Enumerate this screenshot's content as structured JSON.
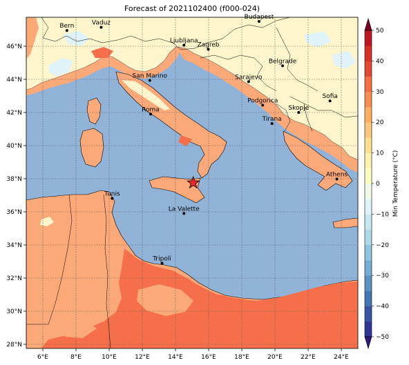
{
  "title": "Forecast of 2021102400 (f000-024)",
  "map": {
    "lon_range": [
      5,
      25
    ],
    "lat_range": [
      27.75,
      47.75
    ],
    "gridlines": true,
    "lon_ticks": [
      {
        "value": 6,
        "label": "6°E"
      },
      {
        "value": 8,
        "label": "8°E"
      },
      {
        "value": 10,
        "label": "10°E"
      },
      {
        "value": 12,
        "label": "12°E"
      },
      {
        "value": 14,
        "label": "14°E"
      },
      {
        "value": 16,
        "label": "16°E"
      },
      {
        "value": 18,
        "label": "18°E"
      },
      {
        "value": 20,
        "label": "20°E"
      },
      {
        "value": 22,
        "label": "22°E"
      },
      {
        "value": 24,
        "label": "24°E"
      }
    ],
    "lat_ticks": [
      {
        "value": 28,
        "label": "28°N"
      },
      {
        "value": 30,
        "label": "30°N"
      },
      {
        "value": 32,
        "label": "32°N"
      },
      {
        "value": 34,
        "label": "34°N"
      },
      {
        "value": 36,
        "label": "36°N"
      },
      {
        "value": 38,
        "label": "38°N"
      },
      {
        "value": 40,
        "label": "40°N"
      },
      {
        "value": 42,
        "label": "42°N"
      },
      {
        "value": 44,
        "label": "44°N"
      },
      {
        "value": 46,
        "label": "46°N"
      }
    ],
    "cities": [
      {
        "name": "Bern",
        "lon": 7.45,
        "lat": 46.95
      },
      {
        "name": "Vaduz",
        "lon": 9.52,
        "lat": 47.14
      },
      {
        "name": "Budapest",
        "lon": 19.04,
        "lat": 47.5
      },
      {
        "name": "Ljubljana",
        "lon": 14.51,
        "lat": 46.06
      },
      {
        "name": "Zagreb",
        "lon": 15.98,
        "lat": 45.81
      },
      {
        "name": "Belgrade",
        "lon": 20.46,
        "lat": 44.82
      },
      {
        "name": "San Marino",
        "lon": 12.45,
        "lat": 43.94
      },
      {
        "name": "Sarajevo",
        "lon": 18.41,
        "lat": 43.86
      },
      {
        "name": "Sofia",
        "lon": 23.32,
        "lat": 42.7
      },
      {
        "name": "Podgorica",
        "lon": 19.26,
        "lat": 42.44
      },
      {
        "name": "Skopje",
        "lon": 21.43,
        "lat": 42.0
      },
      {
        "name": "Roma",
        "lon": 12.5,
        "lat": 41.9
      },
      {
        "name": "Tirana",
        "lon": 19.82,
        "lat": 41.33
      },
      {
        "name": "Athens",
        "lon": 23.73,
        "lat": 37.98
      },
      {
        "name": "Tunis",
        "lon": 10.18,
        "lat": 36.81
      },
      {
        "name": "La Valette",
        "lon": 14.51,
        "lat": 35.9
      },
      {
        "name": "Tripoli",
        "lon": 13.19,
        "lat": 32.89
      }
    ],
    "marker": {
      "type": "star",
      "lon": 15.07,
      "lat": 37.75,
      "color": "#e8262a"
    }
  },
  "colorbar": {
    "label": "Min Temperature (°C)",
    "levels": [
      -50,
      -45,
      -40,
      -35,
      -30,
      -25,
      -20,
      -15,
      -10,
      -5,
      0,
      5,
      10,
      15,
      20,
      25,
      30,
      35,
      40,
      45,
      50
    ],
    "colors": [
      "#313695",
      "#3a53a4",
      "#4575b4",
      "#5e8fc1",
      "#74add1",
      "#8fc2dd",
      "#abd9e9",
      "#c6e6f0",
      "#e0f3f8",
      "#f0f9ea",
      "#ffffbf",
      "#fff2ac",
      "#fee090",
      "#fdc67c",
      "#fdae61",
      "#f88d52",
      "#f46d43",
      "#e34a33",
      "#d73027",
      "#bd1726",
      "#a50026"
    ],
    "tick_labels": [
      "−50",
      "−40",
      "−30",
      "−20",
      "−10",
      "0",
      "10",
      "20",
      "30",
      "40",
      "50"
    ],
    "tick_values": [
      -50,
      -40,
      -30,
      -20,
      -10,
      0,
      10,
      20,
      30,
      40,
      50
    ],
    "under_color": "#2d1a7a",
    "over_color": "#7f0020"
  },
  "colors": {
    "sea": "#91b3d7",
    "land_warm": "#fca97a",
    "land_hot": "#f5704a",
    "land_mild": "#fef5cc",
    "land_cool": "#e0f3f8"
  }
}
